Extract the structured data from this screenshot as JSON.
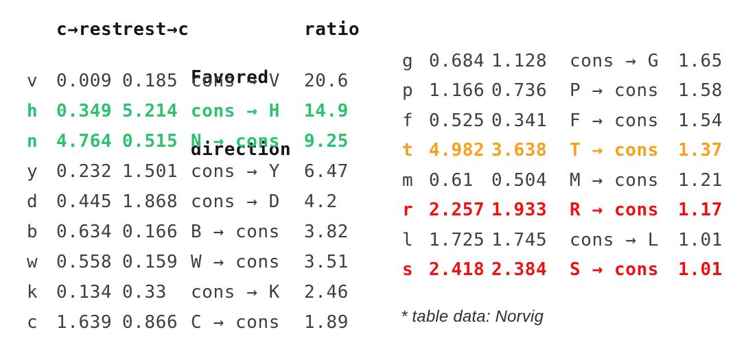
{
  "colors": {
    "background": "#ffffff",
    "header_text": "#161616",
    "row_text": "#3f3f3f",
    "green": "#2dc36e",
    "orange": "#f9a01b",
    "red": "#ee1111",
    "footnote": "#303030"
  },
  "left_table": {
    "headers": {
      "letter": "",
      "c_to_rest": "c→rest",
      "rest_to_c": "rest→c",
      "favored_line1": "Favored",
      "favored_line2": "direction",
      "ratio": "ratio"
    },
    "rows": [
      {
        "letter": "v",
        "c_to_rest": "0.009",
        "rest_to_c": "0.185",
        "favored": "cons → V",
        "ratio": "20.6",
        "highlight": "none"
      },
      {
        "letter": "h",
        "c_to_rest": "0.349",
        "rest_to_c": "5.214",
        "favored": "cons → H",
        "ratio": "14.9",
        "highlight": "green"
      },
      {
        "letter": "n",
        "c_to_rest": "4.764",
        "rest_to_c": "0.515",
        "favored": "N → cons",
        "ratio": "9.25",
        "highlight": "green"
      },
      {
        "letter": "y",
        "c_to_rest": "0.232",
        "rest_to_c": "1.501",
        "favored": "cons → Y",
        "ratio": "6.47",
        "highlight": "none"
      },
      {
        "letter": "d",
        "c_to_rest": "0.445",
        "rest_to_c": "1.868",
        "favored": "cons → D",
        "ratio": "4.2",
        "highlight": "none"
      },
      {
        "letter": "b",
        "c_to_rest": "0.634",
        "rest_to_c": "0.166",
        "favored": "B → cons",
        "ratio": "3.82",
        "highlight": "none"
      },
      {
        "letter": "w",
        "c_to_rest": "0.558",
        "rest_to_c": "0.159",
        "favored": "W → cons",
        "ratio": "3.51",
        "highlight": "none"
      },
      {
        "letter": "k",
        "c_to_rest": "0.134",
        "rest_to_c": "0.33",
        "favored": "cons → K",
        "ratio": "2.46",
        "highlight": "none"
      },
      {
        "letter": "c",
        "c_to_rest": "1.639",
        "rest_to_c": "0.866",
        "favored": "C → cons",
        "ratio": "1.89",
        "highlight": "none"
      }
    ]
  },
  "right_table": {
    "rows": [
      {
        "letter": "g",
        "c_to_rest": "0.684",
        "rest_to_c": "1.128",
        "favored": "cons → G",
        "ratio": "1.65",
        "highlight": "none"
      },
      {
        "letter": "p",
        "c_to_rest": "1.166",
        "rest_to_c": "0.736",
        "favored": "P → cons",
        "ratio": "1.58",
        "highlight": "none"
      },
      {
        "letter": "f",
        "c_to_rest": "0.525",
        "rest_to_c": "0.341",
        "favored": "F → cons",
        "ratio": "1.54",
        "highlight": "none"
      },
      {
        "letter": "t",
        "c_to_rest": "4.982",
        "rest_to_c": "3.638",
        "favored": "T → cons",
        "ratio": "1.37",
        "highlight": "orange"
      },
      {
        "letter": "m",
        "c_to_rest": "0.61",
        "rest_to_c": "0.504",
        "favored": "M → cons",
        "ratio": "1.21",
        "highlight": "none"
      },
      {
        "letter": "r",
        "c_to_rest": "2.257",
        "rest_to_c": "1.933",
        "favored": "R → cons",
        "ratio": "1.17",
        "highlight": "red"
      },
      {
        "letter": "l",
        "c_to_rest": "1.725",
        "rest_to_c": "1.745",
        "favored": "cons → L",
        "ratio": "1.01",
        "highlight": "none"
      },
      {
        "letter": "s",
        "c_to_rest": "2.418",
        "rest_to_c": "2.384",
        "favored": "S → cons",
        "ratio": "1.01",
        "highlight": "red"
      }
    ]
  },
  "footnote": {
    "text": "* table data: Norvig"
  },
  "chart_data": {
    "type": "table",
    "title": "",
    "columns": [
      "letter",
      "c→rest",
      "rest→c",
      "Favored direction",
      "ratio"
    ],
    "rows": [
      [
        "v",
        0.009,
        0.185,
        "cons → V",
        20.6
      ],
      [
        "h",
        0.349,
        5.214,
        "cons → H",
        14.9
      ],
      [
        "n",
        4.764,
        0.515,
        "N → cons",
        9.25
      ],
      [
        "y",
        0.232,
        1.501,
        "cons → Y",
        6.47
      ],
      [
        "d",
        0.445,
        1.868,
        "cons → D",
        4.2
      ],
      [
        "b",
        0.634,
        0.166,
        "B → cons",
        3.82
      ],
      [
        "w",
        0.558,
        0.159,
        "W → cons",
        3.51
      ],
      [
        "k",
        0.134,
        0.33,
        "cons → K",
        2.46
      ],
      [
        "c",
        1.639,
        0.866,
        "C → cons",
        1.89
      ],
      [
        "g",
        0.684,
        1.128,
        "cons → G",
        1.65
      ],
      [
        "p",
        1.166,
        0.736,
        "P → cons",
        1.58
      ],
      [
        "f",
        0.525,
        0.341,
        "F → cons",
        1.54
      ],
      [
        "t",
        4.982,
        3.638,
        "T → cons",
        1.37
      ],
      [
        "m",
        0.61,
        0.504,
        "M → cons",
        1.21
      ],
      [
        "r",
        2.257,
        1.933,
        "R → cons",
        1.17
      ],
      [
        "l",
        1.725,
        1.745,
        "cons → L",
        1.01
      ],
      [
        "s",
        2.418,
        2.384,
        "S → cons",
        1.01
      ]
    ],
    "highlighted_rows": {
      "green": [
        "h",
        "n"
      ],
      "orange": [
        "t"
      ],
      "red": [
        "r",
        "s"
      ]
    },
    "layout": "two side-by-side table halves, rows sorted by descending ratio",
    "footnote": "* table data: Norvig"
  }
}
